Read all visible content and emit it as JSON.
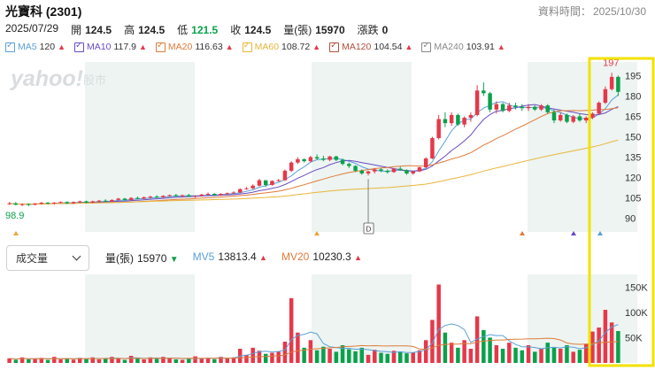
{
  "header": {
    "title": "光寶科 (2301)",
    "data_time_label": "資料時間：",
    "data_time_value": "2025/10/30"
  },
  "ohlc": {
    "date": "2025/07/29",
    "open_label": "開",
    "open": "124.5",
    "high_label": "高",
    "high": "124.5",
    "low_label": "低",
    "low": "121.5",
    "close_label": "收",
    "close": "124.5",
    "volume_label": "量(張)",
    "volume": "15970",
    "change_label": "漲跌",
    "change": "0"
  },
  "ma_legend": [
    {
      "label": "MA5",
      "value": "120",
      "color": "#5aa0d8"
    },
    {
      "label": "MA10",
      "value": "117.9",
      "color": "#6a4bc4"
    },
    {
      "label": "MA20",
      "value": "116.63",
      "color": "#e07b39"
    },
    {
      "label": "MA60",
      "value": "108.72",
      "color": "#e9b53a"
    },
    {
      "label": "MA120",
      "value": "104.54",
      "color": "#b2503a"
    },
    {
      "label": "MA240",
      "value": "103.91",
      "color": "#888888"
    }
  ],
  "watermark": {
    "brand": "yahoo!",
    "sub": "股市"
  },
  "volume_panel": {
    "selector_label": "成交量",
    "vol_label": "量(張)",
    "vol_value": "15970",
    "mv5_label": "MV5",
    "mv5_value": "13813.4",
    "mv20_label": "MV20",
    "mv20_value": "10230.3"
  },
  "colors": {
    "up": "#e5384a",
    "down": "#0aa14b",
    "highlight": "#f2e200",
    "band": "#edf4f1"
  },
  "chart_data": {
    "type": "candlestick",
    "price_axis": {
      "ticks": [
        90,
        105,
        120,
        135,
        150,
        165,
        180,
        195
      ],
      "ylim": [
        80,
        205
      ]
    },
    "annotations": {
      "max_label": "197",
      "min_label": "98.9",
      "marker": "D"
    },
    "ma_values": {
      "MA5": 120,
      "MA10": 117.9,
      "MA20": 116.63,
      "MA60": 108.72,
      "MA120": 104.54,
      "MA240": 103.91
    },
    "candles": [
      [
        101,
        102,
        100,
        101
      ],
      [
        101,
        102,
        99.5,
        100
      ],
      [
        100,
        101,
        98.9,
        100.5
      ],
      [
        100.5,
        101,
        99,
        100
      ],
      [
        100,
        101,
        99.5,
        101
      ],
      [
        101,
        102,
        100,
        101.5
      ],
      [
        101.5,
        102,
        100.5,
        101
      ],
      [
        101,
        102,
        100,
        101.5
      ],
      [
        101.5,
        102.5,
        101,
        102
      ],
      [
        102,
        102.5,
        100.5,
        101
      ],
      [
        101,
        102.5,
        100.5,
        102
      ],
      [
        102,
        103,
        101,
        102.5
      ],
      [
        102.5,
        103,
        101,
        101.5
      ],
      [
        101.5,
        103,
        101,
        102.5
      ],
      [
        102.5,
        103.5,
        101.5,
        103
      ],
      [
        103,
        104,
        102,
        102.5
      ],
      [
        102.5,
        104,
        102,
        103.5
      ],
      [
        103.5,
        105,
        103,
        104.5
      ],
      [
        104.5,
        105,
        103,
        103.5
      ],
      [
        103.5,
        105.5,
        103,
        105
      ],
      [
        105,
        106,
        104,
        104.5
      ],
      [
        104.5,
        106,
        104,
        105.5
      ],
      [
        105.5,
        106.5,
        104.5,
        106
      ],
      [
        106,
        107,
        105,
        105.5
      ],
      [
        105.5,
        107,
        105,
        106.5
      ],
      [
        106.5,
        107.5,
        106,
        107
      ],
      [
        107,
        108,
        106,
        106.5
      ],
      [
        106.5,
        107.5,
        105.5,
        107
      ],
      [
        107,
        108,
        106,
        106
      ],
      [
        106,
        107,
        105,
        106.5
      ],
      [
        106.5,
        108,
        106,
        107.5
      ],
      [
        107.5,
        109,
        107,
        108
      ],
      [
        108,
        108.5,
        106.5,
        107
      ],
      [
        107,
        108.5,
        106.5,
        108
      ],
      [
        108,
        109,
        107,
        108.5
      ],
      [
        108.5,
        110,
        108,
        109
      ],
      [
        109,
        112,
        108.5,
        111.5
      ],
      [
        111.5,
        113,
        111,
        112
      ],
      [
        112,
        115,
        111.5,
        114
      ],
      [
        114,
        119,
        113.5,
        118
      ],
      [
        118,
        117.5,
        113,
        114.5
      ],
      [
        114.5,
        118,
        114,
        117.5
      ],
      [
        117.5,
        119,
        117,
        118
      ],
      [
        118,
        126,
        117.5,
        125
      ],
      [
        125,
        132,
        124,
        131
      ],
      [
        131,
        135,
        130,
        133.5
      ],
      [
        133.5,
        134,
        131,
        132
      ],
      [
        132,
        136,
        131,
        135
      ],
      [
        135,
        137,
        133,
        134
      ],
      [
        134,
        136,
        132,
        133
      ],
      [
        133,
        136,
        132,
        135.5
      ],
      [
        135.5,
        136,
        132,
        133
      ],
      [
        133,
        134,
        129,
        130
      ],
      [
        130,
        131,
        127,
        128.5
      ],
      [
        128.5,
        129,
        124,
        125
      ],
      [
        125,
        126,
        122,
        123
      ],
      [
        123,
        125,
        121.5,
        124.5
      ],
      [
        124.5,
        127,
        123,
        126
      ],
      [
        126,
        127,
        124,
        125
      ],
      [
        125,
        126,
        123,
        124
      ],
      [
        124,
        127,
        123.5,
        126.5
      ],
      [
        126.5,
        128,
        125,
        125.5
      ],
      [
        125.5,
        126,
        122,
        123
      ],
      [
        123,
        125,
        122,
        124.5
      ],
      [
        124.5,
        128,
        124,
        127.5
      ],
      [
        127.5,
        135,
        127,
        134
      ],
      [
        134,
        150,
        133.5,
        149
      ],
      [
        149,
        166,
        148,
        163
      ],
      [
        163,
        168,
        157,
        160
      ],
      [
        160,
        168,
        158,
        166
      ],
      [
        166,
        167,
        158,
        159
      ],
      [
        159,
        165,
        157,
        164
      ],
      [
        164,
        168,
        161,
        166
      ],
      [
        166,
        188,
        165,
        184
      ],
      [
        184,
        190,
        180,
        182
      ],
      [
        182,
        183,
        168,
        170
      ],
      [
        170,
        176,
        167,
        174
      ],
      [
        174,
        175,
        168,
        169
      ],
      [
        169,
        175,
        168,
        173
      ],
      [
        173,
        175,
        170,
        172
      ],
      [
        172,
        174,
        169,
        171
      ],
      [
        171,
        174,
        169,
        172
      ],
      [
        172,
        173,
        169,
        170
      ],
      [
        170,
        174,
        169,
        173
      ],
      [
        173,
        174,
        167,
        168
      ],
      [
        168,
        170,
        160,
        162
      ],
      [
        162,
        168,
        161,
        166
      ],
      [
        166,
        167,
        160,
        161
      ],
      [
        161,
        166,
        160,
        165
      ],
      [
        165,
        167,
        161,
        162
      ],
      [
        162,
        165,
        160,
        164
      ],
      [
        164,
        168,
        163,
        167
      ],
      [
        167,
        176,
        166,
        175
      ],
      [
        175,
        187,
        174,
        185
      ],
      [
        185,
        197,
        184,
        194
      ],
      [
        194,
        195,
        180,
        183
      ]
    ],
    "volume_axis": {
      "ticks": [
        "50K",
        "100K",
        "150K"
      ],
      "ylim": [
        0,
        175000
      ]
    },
    "volumes": [
      9000,
      6000,
      11000,
      7000,
      8000,
      10000,
      6000,
      12000,
      7000,
      9000,
      6500,
      10000,
      8000,
      11000,
      7000,
      9000,
      12000,
      8500,
      6000,
      14000,
      9000,
      7000,
      11000,
      8000,
      12000,
      10000,
      7000,
      6000,
      9000,
      13000,
      8000,
      10000,
      7500,
      12000,
      9000,
      11000,
      28000,
      16000,
      30000,
      24000,
      18000,
      20000,
      22000,
      42000,
      128000,
      60000,
      30000,
      45000,
      25000,
      32000,
      28000,
      22000,
      35000,
      27000,
      23000,
      30000,
      15970,
      26000,
      20000,
      18000,
      24000,
      22000,
      19000,
      21000,
      25000,
      45000,
      85000,
      155000,
      60000,
      40000,
      30000,
      45000,
      28000,
      92000,
      65000,
      50000,
      35000,
      28000,
      40000,
      30000,
      25000,
      35000,
      22000,
      28000,
      40000,
      30000,
      28000,
      35000,
      22000,
      26000,
      38000,
      62000,
      70000,
      105000,
      80000,
      63000
    ]
  }
}
